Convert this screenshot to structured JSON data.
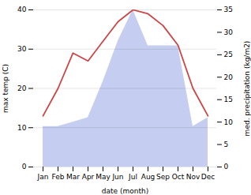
{
  "chart_data": {
    "type": "line",
    "categories": [
      "Jan",
      "Feb",
      "Mar",
      "Apr",
      "May",
      "Jun",
      "Jul",
      "Aug",
      "Sep",
      "Oct",
      "Nov",
      "Dec"
    ],
    "series": [
      {
        "type": "line",
        "color": "#cc4444",
        "values": [
          13,
          20,
          29,
          27,
          32,
          37,
          40,
          39,
          36,
          31,
          20,
          13
        ]
      },
      {
        "type": "area",
        "color": "#c5cef0",
        "axis": "y2",
        "values": [
          9,
          9,
          10,
          11,
          19,
          28,
          35,
          27,
          27,
          27,
          9,
          11
        ]
      }
    ],
    "xlabel": "date (month)",
    "ylabel": "max temp (C)",
    "y2label": "med. precipitation (kg/m2)",
    "ylim": [
      0,
      40
    ],
    "yticks": [
      0,
      10,
      20,
      30,
      40
    ],
    "y2lim": [
      0,
      35
    ],
    "y2ticks": [
      0,
      5,
      10,
      15,
      20,
      25,
      30,
      35
    ],
    "grid": true
  }
}
